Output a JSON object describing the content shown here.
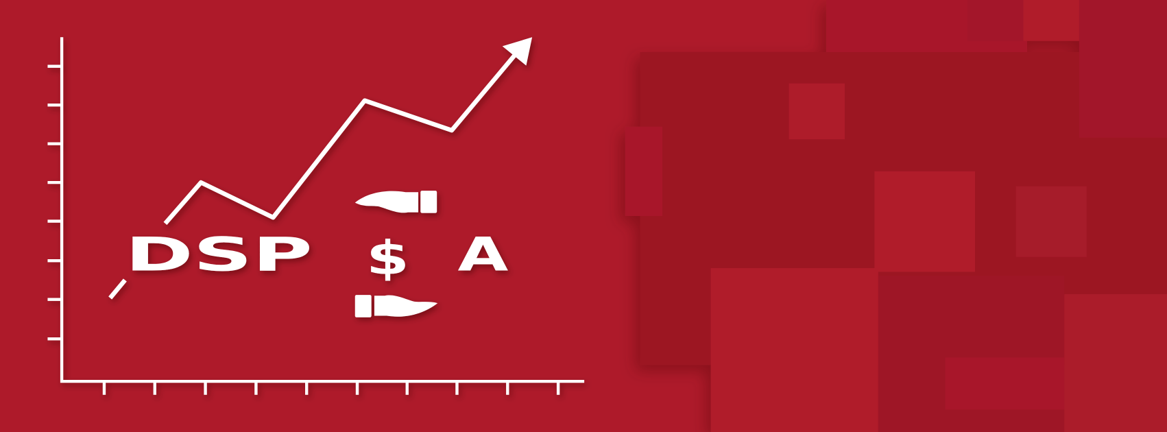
{
  "logo": {
    "left": "DSP",
    "symbol": "$",
    "right": "A"
  }
}
